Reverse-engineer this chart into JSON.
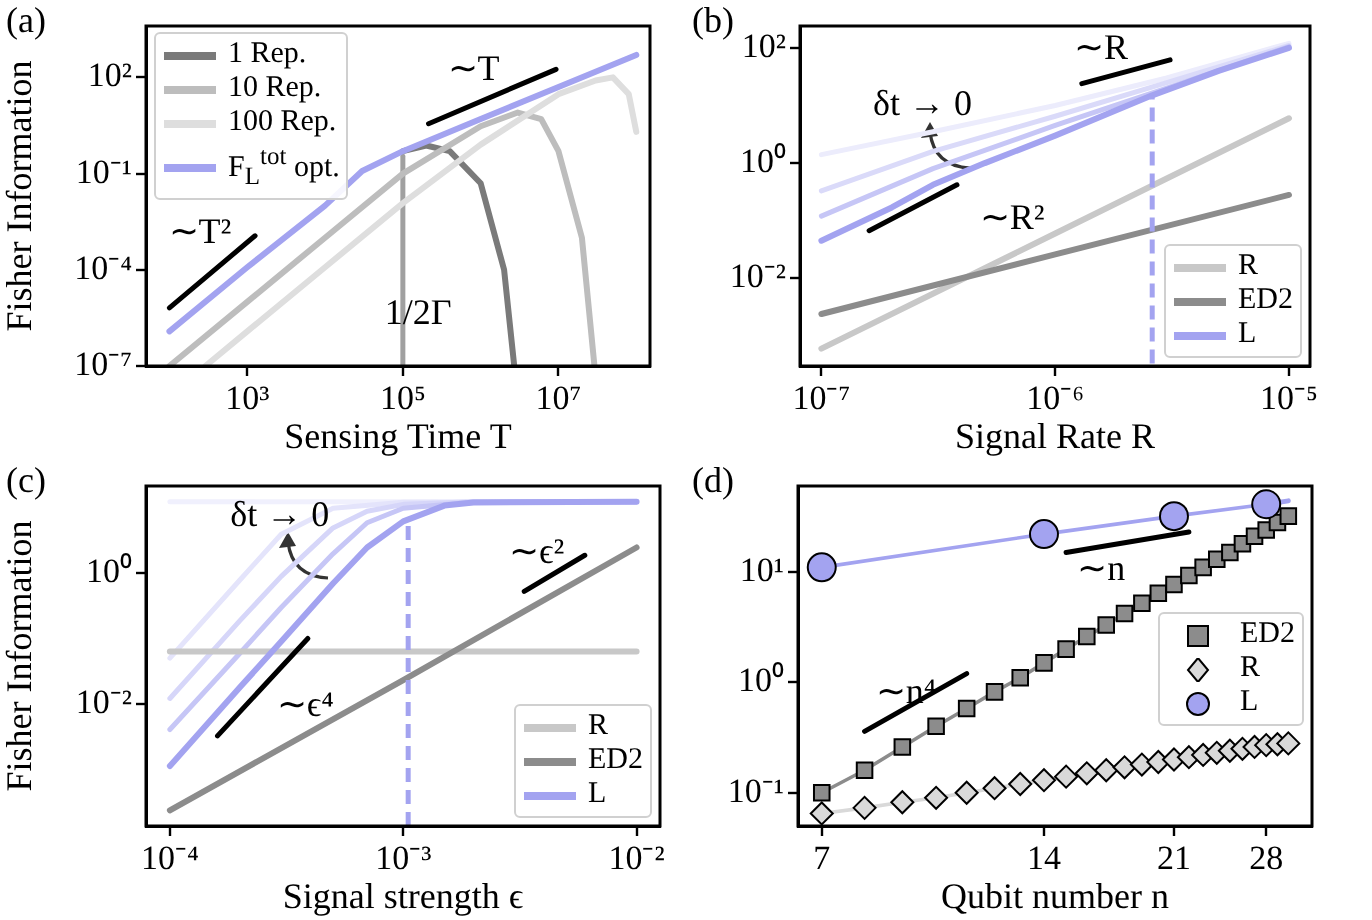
{
  "chart_data": [
    {
      "type": "line",
      "title": "(a)",
      "xlabel": "Sensing Time T",
      "ylabel": "Fisher Information",
      "log": "xy",
      "legend": "top left",
      "xlim": [
        50,
        150000000
      ],
      "xticks": [
        {
          "value": 1000,
          "label": "10³"
        },
        {
          "value": 100000,
          "label": "10⁵"
        },
        {
          "value": 10000000,
          "label": "10⁷"
        }
      ],
      "ylim": [
        1e-07,
        4000
      ],
      "yticks": [
        {
          "value": 1e-07,
          "label": "10⁻⁷"
        },
        {
          "value": 0.0001,
          "label": "10⁻⁴"
        },
        {
          "value": 0.1,
          "label": "10⁻¹"
        },
        {
          "value": 100,
          "label": "10²"
        }
      ],
      "series": [
        {
          "type": "line",
          "color": "#000000",
          "x": [
            100,
            1260
          ],
          "values": [
            6.5e-06,
            0.00115
          ]
        },
        {
          "type": "line",
          "color": "#000000",
          "x": [
            214000,
            9300000
          ],
          "values": [
            3.6,
            178
          ]
        },
        {
          "type": "line",
          "color": "#a0a0a0",
          "x": [
            100000,
            100000
          ],
          "values": [
            1e-07,
            0.35
          ]
        },
        {
          "type": "line",
          "name": "1 Rep.",
          "color": "#7a7a7a",
          "x": [
            100000,
            200000,
            400000,
            1000000,
            2000000,
            2700000
          ],
          "values": [
            0.5,
            0.75,
            0.5,
            0.05,
            0.0001,
            1e-07
          ]
        },
        {
          "type": "line",
          "name": "10 Rep.",
          "color": "#bdbdbd",
          "x": [
            100,
            1000,
            10000,
            100000,
            1000000,
            3000000,
            6000000,
            10000000,
            20000000,
            29000000
          ],
          "values": [
            1e-07,
            1e-05,
            0.001,
            0.1,
            3,
            8,
            5,
            0.5,
            0.001,
            1e-07
          ]
        },
        {
          "type": "line",
          "name": "100 Rep.",
          "color": "#dedede",
          "x": [
            290,
            1000,
            10000,
            100000,
            1000000,
            10000000,
            30000000,
            50000000,
            80000000,
            100000000
          ],
          "values": [
            1e-07,
            1.2e-06,
            0.00012,
            0.012,
            0.8,
            30,
            80,
            100,
            30,
            2
          ]
        },
        {
          "type": "line",
          "name": "F$_{L}$$^{tot}$ opt.",
          "color": "#a3a3f0",
          "x": [
            100,
            1000,
            10000,
            30000,
            100000,
            1000000,
            10000000,
            100000000
          ],
          "values": [
            1.2e-06,
            0.00012,
            0.01,
            0.12,
            0.5,
            5,
            50,
            500
          ]
        }
      ],
      "annotations": [
        "∼T²",
        "∼T",
        "1/2Γ"
      ]
    },
    {
      "type": "line",
      "title": "(b)",
      "xlabel": "Signal Rate R",
      "log": "xy",
      "legend": "bottom right",
      "xlim": [
        8.1e-08,
        1.23e-05
      ],
      "xticks": [
        {
          "value": 1e-07,
          "label": "10⁻⁷"
        },
        {
          "value": 1e-06,
          "label": "10⁻⁶"
        },
        {
          "value": 1e-05,
          "label": "10⁻⁵"
        }
      ],
      "ylim": [
        0.00033,
        240
      ],
      "yticks": [
        {
          "value": 0.01,
          "label": "10⁻²"
        },
        {
          "value": 1,
          "label": "10⁰"
        },
        {
          "value": 100,
          "label": "10²"
        }
      ],
      "series": [
        {
          "type": "line",
          "color": "#ececfc",
          "x": [
            1e-07,
            3e-07,
            1e-06,
            3e-06,
            1e-05
          ],
          "values": [
            1.4,
            3.5,
            10,
            30,
            120
          ]
        },
        {
          "type": "line",
          "color": "#dadaf9",
          "x": [
            1e-07,
            3e-07,
            1e-06,
            3e-06,
            1e-05
          ],
          "values": [
            0.33,
            1.6,
            6.5,
            25,
            110
          ]
        },
        {
          "type": "line",
          "color": "#c6c6f6",
          "x": [
            1e-07,
            3e-07,
            1e-06,
            3e-06,
            1e-05
          ],
          "values": [
            0.12,
            0.8,
            4.5,
            20,
            105
          ]
        },
        {
          "type": "line",
          "name": "R",
          "color": "#c8c8c8",
          "x": [
            1e-07,
            1e-06,
            1e-05
          ],
          "values": [
            0.0006,
            0.06,
            6
          ]
        },
        {
          "type": "line",
          "name": "ED2",
          "color": "#8c8c8c",
          "x": [
            1e-07,
            1e-06,
            1e-05
          ],
          "values": [
            0.0024,
            0.026,
            0.28
          ]
        },
        {
          "type": "line",
          "name": "L",
          "color": "#a3a3f0",
          "x": [
            1e-07,
            2e-07,
            3e-07,
            5e-07,
            1e-06,
            2.6e-06,
            5e-06,
            1e-05
          ],
          "values": [
            0.045,
            0.17,
            0.42,
            1,
            3,
            15,
            40,
            100
          ]
        },
        {
          "type": "line",
          "color": "#a3a3f0",
          "line_style": "dashed",
          "x": [
            2.6e-06,
            2.6e-06
          ],
          "values": [
            0.00033,
            15
          ]
        },
        {
          "type": "line",
          "color": "#000000",
          "x": [
            1.6e-07,
            3.8e-07
          ],
          "values": [
            0.067,
            0.42
          ]
        },
        {
          "type": "line",
          "color": "#000000",
          "x": [
            1.3e-06,
            3.1e-06
          ],
          "values": [
            24,
            62
          ]
        }
      ],
      "annotations": [
        "∼R²",
        "∼R",
        "δt → 0"
      ]
    },
    {
      "type": "line",
      "title": "(c)",
      "xlabel": "Signal strength ϵ",
      "ylabel": "Fisher Information",
      "log": "xy",
      "legend": "bottom right",
      "xlim": [
        7.9e-05,
        0.0126
      ],
      "xticks": [
        {
          "value": 0.0001,
          "label": "10⁻⁴"
        },
        {
          "value": 0.001,
          "label": "10⁻³"
        },
        {
          "value": 0.01,
          "label": "10⁻²"
        }
      ],
      "ylim": [
        0.000132,
        22
      ],
      "yticks": [
        {
          "value": 0.01,
          "label": "10⁻²"
        },
        {
          "value": 1,
          "label": "10⁰"
        }
      ],
      "series": [
        {
          "type": "line",
          "color": "#f0f0fd",
          "x": [
            0.0001,
            0.01
          ],
          "values": [
            12.6,
            12.6
          ]
        },
        {
          "type": "line",
          "color": "#e4e4fb",
          "x": [
            0.0001,
            0.0002,
            0.0003,
            0.0005,
            0.001,
            0.01
          ],
          "values": [
            0.05,
            0.8,
            4,
            10,
            12.4,
            12.6
          ]
        },
        {
          "type": "line",
          "color": "#d6d6f9",
          "x": [
            0.0001,
            0.0002,
            0.0003,
            0.0005,
            0.0007,
            0.001,
            0.002,
            0.01
          ],
          "values": [
            0.012,
            0.19,
            0.9,
            5,
            9,
            11.5,
            12.6,
            12.6
          ]
        },
        {
          "type": "line",
          "color": "#c6c6f6",
          "x": [
            0.0001,
            0.0002,
            0.0003,
            0.0005,
            0.0007,
            0.001,
            0.002,
            0.01
          ],
          "values": [
            0.004,
            0.06,
            0.3,
            2,
            6,
            10,
            12.5,
            12.6
          ]
        },
        {
          "type": "line",
          "name": "R",
          "color": "#c8c8c8",
          "x": [
            0.0001,
            0.01
          ],
          "values": [
            0.063,
            0.063
          ]
        },
        {
          "type": "line",
          "name": "ED2",
          "color": "#8c8c8c",
          "x": [
            0.0001,
            0.001,
            0.01
          ],
          "values": [
            0.00023,
            0.023,
            2.5
          ]
        },
        {
          "type": "line",
          "name": "L",
          "color": "#a3a3f0",
          "x": [
            0.0001,
            0.0002,
            0.0003,
            0.0005,
            0.0007,
            0.001,
            0.0015,
            0.002,
            0.01
          ],
          "values": [
            0.0011,
            0.018,
            0.09,
            0.7,
            2.5,
            6.3,
            11,
            12.3,
            12.6
          ]
        },
        {
          "type": "line",
          "color": "#a3a3f0",
          "line_style": "dashed",
          "x": [
            0.00105,
            0.00105
          ],
          "values": [
            0.000132,
            6.6
          ]
        },
        {
          "type": "line",
          "color": "#000000",
          "x": [
            0.00016,
            0.00039
          ],
          "values": [
            0.0032,
            0.1
          ]
        },
        {
          "type": "line",
          "color": "#000000",
          "x": [
            0.0033,
            0.006
          ],
          "values": [
            0.53,
            1.9
          ]
        }
      ],
      "annotations": [
        "∼ϵ⁴",
        "∼ϵ²",
        "δt → 0"
      ]
    },
    {
      "type": "line",
      "title": "(d)",
      "xlabel": "Qubit number n",
      "log": "xy",
      "legend": "bottom right",
      "xlim": [
        6.5,
        32.3
      ],
      "xticks": [
        7,
        14,
        21,
        28
      ],
      "ylim": [
        0.05,
        60
      ],
      "yticks": [
        {
          "value": 0.1,
          "label": "10⁻¹"
        },
        {
          "value": 1,
          "label": "10⁰"
        },
        {
          "value": 10,
          "label": "10¹"
        }
      ],
      "series": [
        {
          "type": "line",
          "color": "#000000",
          "x": [
            8,
            11
          ],
          "values": [
            0.36,
            1.2
          ]
        },
        {
          "type": "line",
          "color": "#000000",
          "x": [
            15,
            22
          ],
          "values": [
            15,
            23
          ]
        },
        {
          "type": "line",
          "name": "ED2",
          "color": "#8c8c8c",
          "marker": "square",
          "x": [
            7,
            8,
            9,
            10,
            11,
            12,
            13,
            14,
            15,
            16,
            17,
            18,
            19,
            20,
            21,
            22,
            23,
            24,
            25,
            26,
            27,
            28,
            29,
            30
          ],
          "values": [
            0.1,
            0.16,
            0.26,
            0.4,
            0.58,
            0.82,
            1.1,
            1.5,
            2,
            2.6,
            3.3,
            4.2,
            5.2,
            6.4,
            7.7,
            9.3,
            11,
            13,
            15,
            18,
            21,
            24,
            28,
            32
          ]
        },
        {
          "type": "line",
          "name": "R",
          "color": "#d9d9d9",
          "marker": "diamond",
          "x": [
            7,
            8,
            9,
            10,
            11,
            12,
            13,
            14,
            15,
            16,
            17,
            18,
            19,
            20,
            21,
            22,
            23,
            24,
            25,
            26,
            27,
            28,
            29,
            30
          ],
          "values": [
            0.065,
            0.073,
            0.082,
            0.09,
            0.1,
            0.11,
            0.12,
            0.13,
            0.14,
            0.15,
            0.16,
            0.17,
            0.18,
            0.19,
            0.2,
            0.21,
            0.22,
            0.23,
            0.24,
            0.25,
            0.26,
            0.27,
            0.275,
            0.28
          ]
        },
        {
          "type": "line",
          "color": "#a3a3f0",
          "x": [
            28,
            30
          ],
          "values": [
            41,
            44
          ]
        },
        {
          "type": "line",
          "name": "L",
          "color": "#a3a3f0",
          "marker": "circle",
          "x": [
            7,
            14,
            21,
            28
          ],
          "values": [
            11,
            22,
            32,
            41
          ]
        }
      ],
      "annotations": [
        "∼n⁴",
        "∼n"
      ]
    }
  ]
}
